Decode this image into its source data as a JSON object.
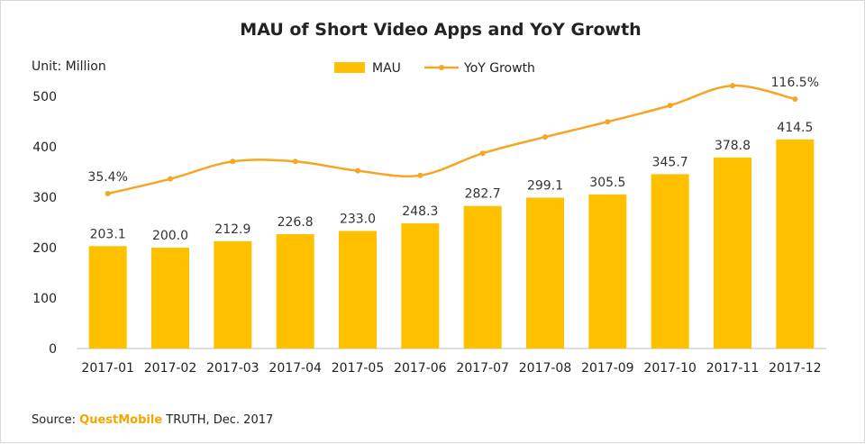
{
  "chart_data": {
    "type": "bar",
    "title": "MAU of Short Video Apps and YoY Growth",
    "unit_label": "Unit: Million",
    "categories": [
      "2017-01",
      "2017-02",
      "2017-03",
      "2017-04",
      "2017-05",
      "2017-06",
      "2017-07",
      "2017-08",
      "2017-09",
      "2017-10",
      "2017-11",
      "2017-12"
    ],
    "series": [
      {
        "name": "MAU",
        "type": "bar",
        "color": "#ffc000",
        "values": [
          203.1,
          200.0,
          212.9,
          226.8,
          233.0,
          248.3,
          282.7,
          299.1,
          305.5,
          345.7,
          378.8,
          414.5
        ],
        "labels": [
          "203.1",
          "200.0",
          "212.9",
          "226.8",
          "233.0",
          "248.3",
          "282.7",
          "299.1",
          "305.5",
          "345.7",
          "378.8",
          "414.5"
        ]
      },
      {
        "name": "YoY Growth",
        "type": "line",
        "color": "#f5a623",
        "values_pct": [
          35.4,
          48,
          63,
          63,
          55,
          51,
          70,
          84,
          97,
          111,
          128,
          116.5
        ],
        "labels": [
          "35.4%",
          "",
          "",
          "",
          "",
          "",
          "",
          "",
          "",
          "",
          "",
          "116.5%"
        ]
      }
    ],
    "ylim": [
      0,
      500
    ],
    "yticks": [
      "0",
      "100",
      "200",
      "300",
      "400",
      "500"
    ],
    "legend_position": "top-center",
    "grid": false
  },
  "source": {
    "prefix": "Source: ",
    "brand": "QuestMobile",
    "suffix": " TRUTH, Dec. 2017"
  }
}
